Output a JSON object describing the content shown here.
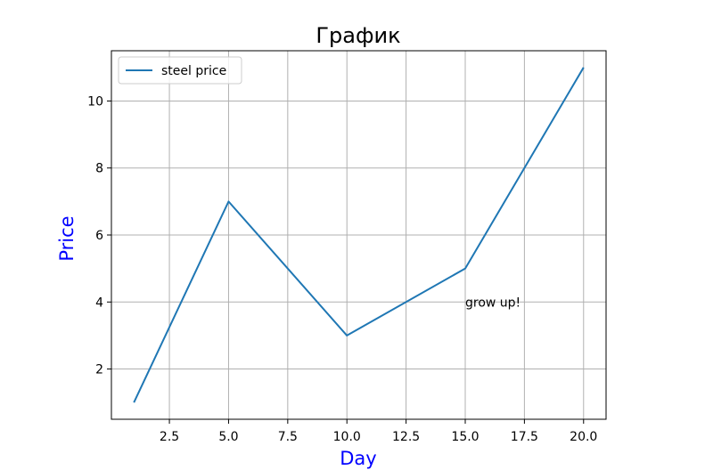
{
  "chart_data": {
    "type": "line",
    "title": "График",
    "xlabel": "Day",
    "ylabel": "Price",
    "xlim": [
      0.05,
      20.95
    ],
    "ylim": [
      0.5,
      11.5
    ],
    "xticks": [
      2.5,
      5.0,
      7.5,
      10.0,
      12.5,
      15.0,
      17.5,
      20.0
    ],
    "xtick_labels": [
      "2.5",
      "5.0",
      "7.5",
      "10.0",
      "12.5",
      "15.0",
      "17.5",
      "20.0"
    ],
    "yticks": [
      2,
      4,
      6,
      8,
      10
    ],
    "ytick_labels": [
      "2",
      "4",
      "6",
      "8",
      "10"
    ],
    "grid": true,
    "legend_position": "top-left",
    "series": [
      {
        "name": "steel price",
        "color": "#1f77b4",
        "x": [
          1,
          5,
          10,
          15,
          20
        ],
        "y": [
          1,
          7,
          3,
          5,
          11
        ]
      }
    ],
    "annotations": [
      {
        "text": "grow up!",
        "x": 15,
        "y": 4
      }
    ],
    "colors": {
      "axis_label": "#0000ff",
      "grid": "#b0b0b0",
      "line": "#1f77b4"
    }
  }
}
